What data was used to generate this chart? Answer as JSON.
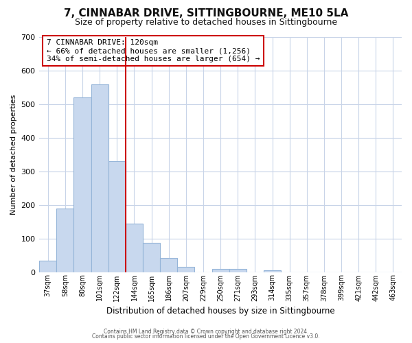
{
  "title": "7, CINNABAR DRIVE, SITTINGBOURNE, ME10 5LA",
  "subtitle": "Size of property relative to detached houses in Sittingbourne",
  "xlabel": "Distribution of detached houses by size in Sittingbourne",
  "ylabel": "Number of detached properties",
  "bar_labels": [
    "37sqm",
    "58sqm",
    "80sqm",
    "101sqm",
    "122sqm",
    "144sqm",
    "165sqm",
    "186sqm",
    "207sqm",
    "229sqm",
    "250sqm",
    "271sqm",
    "293sqm",
    "314sqm",
    "335sqm",
    "357sqm",
    "378sqm",
    "399sqm",
    "421sqm",
    "442sqm",
    "463sqm"
  ],
  "bar_values": [
    33,
    190,
    520,
    560,
    330,
    145,
    87,
    42,
    15,
    0,
    10,
    10,
    0,
    5,
    0,
    0,
    0,
    0,
    0,
    0,
    0
  ],
  "bar_color": "#c8d8ee",
  "bar_edge_color": "#94b4d8",
  "vline_color": "#cc0000",
  "ylim": [
    0,
    700
  ],
  "yticks": [
    0,
    100,
    200,
    300,
    400,
    500,
    600,
    700
  ],
  "annotation_title": "7 CINNABAR DRIVE: 120sqm",
  "annotation_line1": "← 66% of detached houses are smaller (1,256)",
  "annotation_line2": "34% of semi-detached houses are larger (654) →",
  "annotation_box_color": "#ffffff",
  "annotation_box_edge": "#cc0000",
  "footer1": "Contains HM Land Registry data © Crown copyright and database right 2024.",
  "footer2": "Contains public sector information licensed under the Open Government Licence v3.0.",
  "grid_color": "#c8d4e8",
  "background_color": "#ffffff",
  "title_fontsize": 11,
  "subtitle_fontsize": 9
}
